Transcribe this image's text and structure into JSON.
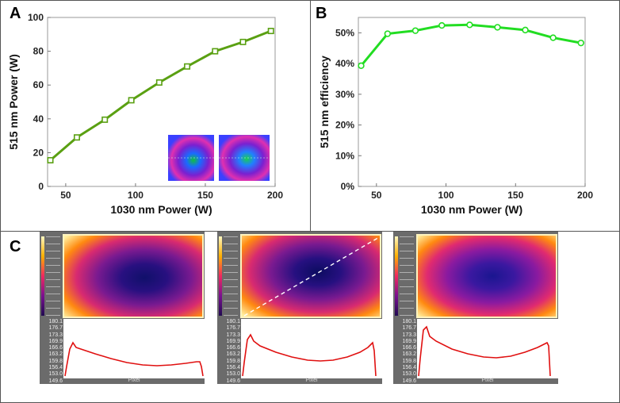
{
  "panels": {
    "a": "A",
    "b": "B",
    "c": "C"
  },
  "chart_data": [
    {
      "type": "line",
      "title": "",
      "xlabel": "1030 nm Power (W)",
      "ylabel": "515 nm Power (W)",
      "x": [
        39,
        58,
        78,
        97,
        117,
        137,
        157,
        177,
        197
      ],
      "y": [
        15.5,
        29.0,
        39.5,
        51.0,
        61.5,
        71.0,
        80.0,
        85.5,
        92.0
      ],
      "xlim": [
        37,
        200
      ],
      "ylim": [
        0,
        100
      ],
      "xticks": [
        "50",
        "100",
        "150",
        "200"
      ],
      "yticks": [
        "0",
        "20",
        "40",
        "60",
        "80",
        "100"
      ],
      "color": "#5aa012",
      "marker": "square"
    },
    {
      "type": "line",
      "title": "",
      "xlabel": "1030 nm Power (W)",
      "ylabel": "515 nm efficiency",
      "x": [
        39,
        58,
        78,
        97,
        117,
        137,
        157,
        177,
        197
      ],
      "y": [
        39.3,
        49.7,
        50.7,
        52.4,
        52.6,
        51.8,
        50.9,
        48.4,
        46.7
      ],
      "xlim": [
        37,
        200
      ],
      "ylim": [
        0,
        55
      ],
      "xticks": [
        "50",
        "100",
        "150",
        "200"
      ],
      "yticks": [
        "0%",
        "10%",
        "20%",
        "30%",
        "40%",
        "50%"
      ],
      "color": "#22dd22",
      "marker": "circle"
    }
  ],
  "camera": {
    "scale_labels": [
      "180.1",
      "176.7",
      "173.3",
      "169.9",
      "166.6",
      "163.2",
      "159.8",
      "156.4",
      "153.0",
      "149.6"
    ],
    "x_axis_label": "Pixel",
    "profiles": [
      {
        "name": "left"
      },
      {
        "name": "middle"
      },
      {
        "name": "right"
      }
    ]
  },
  "colors": {
    "line_a": "#5aa012",
    "line_b": "#22dd22",
    "profile": "#e01010"
  }
}
